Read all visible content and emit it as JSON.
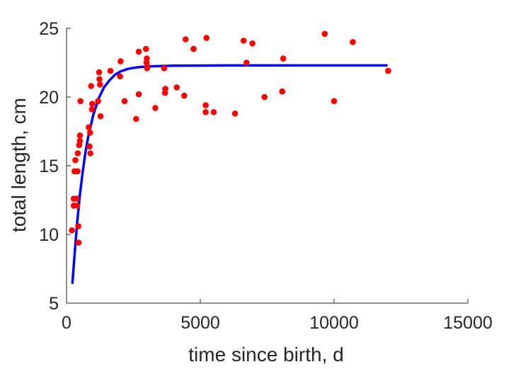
{
  "chart_data": {
    "type": "scatter",
    "xlabel": "time since birth, d",
    "ylabel": "total length, cm",
    "xlim": [
      0,
      15000
    ],
    "ylim": [
      5,
      25
    ],
    "xticks": [
      0,
      5000,
      10000,
      15000
    ],
    "yticks": [
      5,
      10,
      15,
      20,
      25
    ],
    "grid": false,
    "box": false,
    "colors": {
      "points": "#ff0000",
      "fit": "#0000ff",
      "axis": "#262626"
    },
    "series": [
      {
        "kind": "points",
        "x": [
          200,
          270,
          270,
          300,
          330,
          380,
          400,
          410,
          420,
          440,
          450,
          470,
          500,
          500,
          520,
          830,
          860,
          880,
          890,
          920,
          950,
          960,
          1180,
          1220,
          1230,
          1250,
          1270,
          1640,
          2000,
          2020,
          2170,
          2600,
          2700,
          2700,
          2970,
          2990,
          3000,
          3010,
          3020,
          3320,
          3650,
          3680,
          3690,
          4120,
          4400,
          4450,
          4750,
          5200,
          5200,
          5230,
          5500,
          6300,
          6620,
          6730,
          6950,
          7400,
          8060,
          8100,
          9650,
          10000,
          10700,
          12020
        ],
        "y": [
          10.3,
          12.1,
          12.6,
          14.6,
          15.4,
          12.6,
          12.1,
          14.6,
          15.9,
          10.6,
          9.4,
          16.5,
          16.8,
          17.2,
          19.7,
          17.8,
          16.4,
          17.4,
          15.9,
          20.8,
          19.1,
          19.5,
          19.7,
          21.8,
          21.3,
          20.9,
          18.6,
          21.9,
          21.5,
          22.6,
          19.7,
          18.4,
          20.2,
          23.3,
          23.5,
          22.5,
          22.8,
          22.1,
          22.2,
          19.2,
          22.1,
          20.3,
          20.6,
          20.7,
          20.1,
          24.2,
          23.5,
          19.4,
          18.9,
          24.3,
          18.9,
          18.8,
          24.1,
          22.5,
          23.9,
          20.0,
          20.4,
          22.8,
          24.6,
          19.7,
          24.0,
          21.9
        ]
      },
      {
        "kind": "fit",
        "x": [
          220,
          300,
          400,
          500,
          600,
          700,
          800,
          1000,
          1200,
          1400,
          1600,
          1800,
          2000,
          2300,
          2600,
          3000,
          3500,
          4000,
          6000,
          8000,
          10000,
          12000
        ],
        "y": [
          6.4,
          8.5,
          10.9,
          12.9,
          14.5,
          15.9,
          17.0,
          18.7,
          19.9,
          20.7,
          21.2,
          21.6,
          21.85,
          22.05,
          22.15,
          22.22,
          22.26,
          22.28,
          22.3,
          22.3,
          22.3,
          22.3
        ]
      }
    ]
  }
}
